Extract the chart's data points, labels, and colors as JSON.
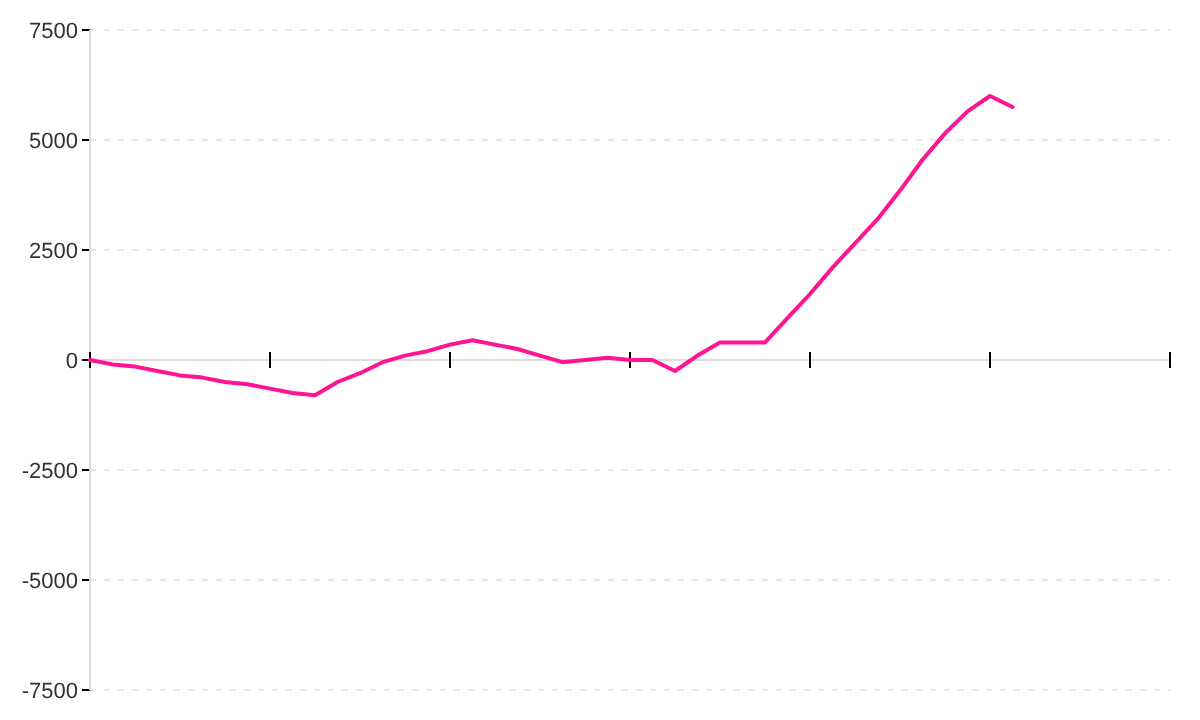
{
  "chart_data": {
    "type": "line",
    "categories": [
      null,
      null,
      null,
      null,
      null,
      null,
      null,
      null,
      null,
      null,
      null,
      null,
      null,
      null,
      null,
      null,
      null,
      null,
      null,
      null,
      null,
      null,
      null,
      null,
      null,
      null,
      null,
      null,
      null,
      null,
      null,
      null,
      null,
      null,
      null,
      null,
      null,
      null,
      null,
      null,
      null,
      null,
      null,
      null,
      null,
      null,
      null,
      null,
      null
    ],
    "series": [
      {
        "color": "#ff1493",
        "values": [
          0,
          -100,
          -150,
          -250,
          -350,
          -400,
          -500,
          -550,
          -650,
          -750,
          -800,
          -500,
          -300,
          -50,
          100,
          200,
          350,
          450,
          350,
          250,
          100,
          -50,
          0,
          50,
          0,
          0,
          -250,
          100,
          400,
          400,
          400,
          950,
          1500,
          2100,
          2650,
          3200,
          3850,
          4550,
          5150,
          5650,
          6000,
          5750,
          null,
          null,
          null,
          null,
          null,
          null,
          null
        ]
      }
    ],
    "ylim": [
      -7500,
      7500
    ],
    "yticks": [
      -7500,
      -5000,
      -2500,
      0,
      2500,
      5000,
      7500
    ],
    "grid": "y",
    "tick_labels": "y",
    "marker": "none",
    "line_style": "solid"
  }
}
